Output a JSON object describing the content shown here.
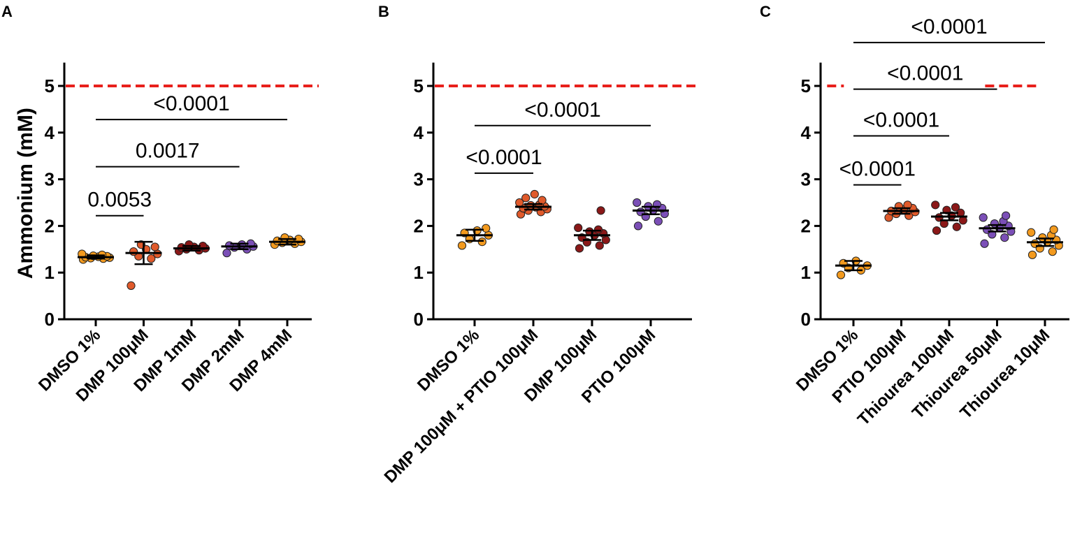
{
  "chart_data": [
    {
      "type": "scatter",
      "panel": "A",
      "ylabel": "Ammonium (mM)",
      "ylim": [
        0,
        5.5
      ],
      "yticks": [
        0,
        1,
        2,
        3,
        4,
        5
      ],
      "reference_line": {
        "y": 5,
        "color": "#e8201c",
        "style": "dashed",
        "segments": [
          [
            0,
            4
          ]
        ]
      },
      "categories": [
        {
          "label": "DMSO 1%",
          "color": "#f39a1e",
          "mean": 1.33,
          "err_low": 1.3,
          "err_high": 1.37,
          "points": [
            1.28,
            1.3,
            1.31,
            1.32,
            1.33,
            1.34,
            1.35,
            1.36,
            1.38,
            1.4
          ]
        },
        {
          "label": "DMP 100μM",
          "color": "#e05a2b",
          "mean": 1.42,
          "err_low": 1.18,
          "err_high": 1.66,
          "points": [
            0.72,
            1.3,
            1.35,
            1.4,
            1.45,
            1.5,
            1.55,
            1.6
          ]
        },
        {
          "label": "DMP 1mM",
          "color": "#8b1818",
          "mean": 1.52,
          "err_low": 1.47,
          "err_high": 1.57,
          "points": [
            1.46,
            1.48,
            1.5,
            1.52,
            1.54,
            1.55,
            1.57,
            1.6
          ]
        },
        {
          "label": "DMP 2mM",
          "color": "#7b4fb7",
          "mean": 1.56,
          "err_low": 1.5,
          "err_high": 1.62,
          "points": [
            1.42,
            1.5,
            1.54,
            1.56,
            1.58,
            1.6,
            1.62
          ]
        },
        {
          "label": "DMP 4mM",
          "color": "#f39a1e",
          "mean": 1.66,
          "err_low": 1.6,
          "err_high": 1.72,
          "points": [
            1.6,
            1.62,
            1.64,
            1.66,
            1.68,
            1.7,
            1.72,
            1.75
          ]
        }
      ],
      "comparisons": [
        {
          "from": 0,
          "to": 1,
          "y": 2.22,
          "label": "0.0053"
        },
        {
          "from": 0,
          "to": 3,
          "y": 3.27,
          "label": "0.0017"
        },
        {
          "from": 0,
          "to": 4,
          "y": 4.28,
          "label": "<0.0001"
        }
      ]
    },
    {
      "type": "scatter",
      "panel": "B",
      "ylim": [
        0,
        5.5
      ],
      "yticks": [
        0,
        1,
        2,
        3,
        4,
        5
      ],
      "reference_line": {
        "y": 5,
        "color": "#e8201c",
        "style": "dashed",
        "segments": [
          [
            0,
            3
          ]
        ]
      },
      "categories": [
        {
          "label": "DMSO 1%",
          "color": "#f39a1e",
          "mean": 1.8,
          "err_low": 1.68,
          "err_high": 1.92,
          "points": [
            1.58,
            1.66,
            1.72,
            1.8,
            1.85,
            1.9,
            1.95
          ]
        },
        {
          "label": "DMP 100μM + PTIO 100μM",
          "color": "#e05a2b",
          "mean": 2.41,
          "err_low": 2.35,
          "err_high": 2.47,
          "points": [
            2.25,
            2.3,
            2.33,
            2.36,
            2.38,
            2.4,
            2.42,
            2.44,
            2.46,
            2.5,
            2.55,
            2.6,
            2.68
          ]
        },
        {
          "label": "DMP 100μM",
          "color": "#8b1818",
          "mean": 1.8,
          "err_low": 1.7,
          "err_high": 1.9,
          "points": [
            1.52,
            1.58,
            1.65,
            1.7,
            1.75,
            1.8,
            1.84,
            1.88,
            1.92,
            1.96,
            2.33
          ]
        },
        {
          "label": "PTIO 100μM",
          "color": "#7b4fb7",
          "mean": 2.33,
          "err_low": 2.25,
          "err_high": 2.41,
          "points": [
            2.0,
            2.1,
            2.2,
            2.26,
            2.3,
            2.34,
            2.38,
            2.42,
            2.46,
            2.5
          ]
        }
      ],
      "comparisons": [
        {
          "from": 0,
          "to": 1,
          "y": 3.13,
          "label": "<0.0001"
        },
        {
          "from": 0,
          "to": 3,
          "y": 4.15,
          "label": "<0.0001"
        }
      ]
    },
    {
      "type": "scatter",
      "panel": "C",
      "ylim": [
        0,
        5.5
      ],
      "yticks": [
        0,
        1,
        2,
        3,
        4,
        5
      ],
      "reference_line": {
        "y": 5,
        "color": "#e8201c",
        "style": "dashed",
        "segments": [
          [
            -0.55,
            -0.2
          ],
          [
            2.75,
            3.85
          ]
        ]
      },
      "categories": [
        {
          "label": "DMSO 1%",
          "color": "#f39a1e",
          "mean": 1.15,
          "err_low": 1.05,
          "err_high": 1.25,
          "points": [
            0.95,
            1.05,
            1.1,
            1.15,
            1.2,
            1.25
          ]
        },
        {
          "label": "PTIO 100μM",
          "color": "#e05a2b",
          "mean": 2.32,
          "err_low": 2.26,
          "err_high": 2.38,
          "points": [
            2.18,
            2.22,
            2.26,
            2.3,
            2.32,
            2.35,
            2.38,
            2.42,
            2.45
          ]
        },
        {
          "label": "Thiourea 100μM",
          "color": "#8b1818",
          "mean": 2.2,
          "err_low": 2.12,
          "err_high": 2.28,
          "points": [
            1.9,
            1.98,
            2.05,
            2.12,
            2.18,
            2.22,
            2.28,
            2.34,
            2.4,
            2.45
          ]
        },
        {
          "label": "Thiourea 50μM",
          "color": "#7b4fb7",
          "mean": 1.95,
          "err_low": 1.88,
          "err_high": 2.02,
          "points": [
            1.62,
            1.75,
            1.82,
            1.88,
            1.92,
            1.96,
            2.0,
            2.05,
            2.1,
            2.18,
            2.22
          ]
        },
        {
          "label": "Thiourea 10μM",
          "color": "#f39a1e",
          "mean": 1.65,
          "err_low": 1.57,
          "err_high": 1.73,
          "points": [
            1.38,
            1.45,
            1.52,
            1.58,
            1.62,
            1.66,
            1.7,
            1.75,
            1.8,
            1.86,
            1.92
          ]
        }
      ],
      "comparisons": [
        {
          "from": 0,
          "to": 1,
          "y": 2.88,
          "label": "<0.0001"
        },
        {
          "from": 0,
          "to": 2,
          "y": 3.93,
          "label": "<0.0001"
        },
        {
          "from": 0,
          "to": 3,
          "y": 4.93,
          "label": "<0.0001"
        },
        {
          "from": 0,
          "to": 4,
          "y": 5.93,
          "label": "<0.0001"
        }
      ]
    }
  ]
}
